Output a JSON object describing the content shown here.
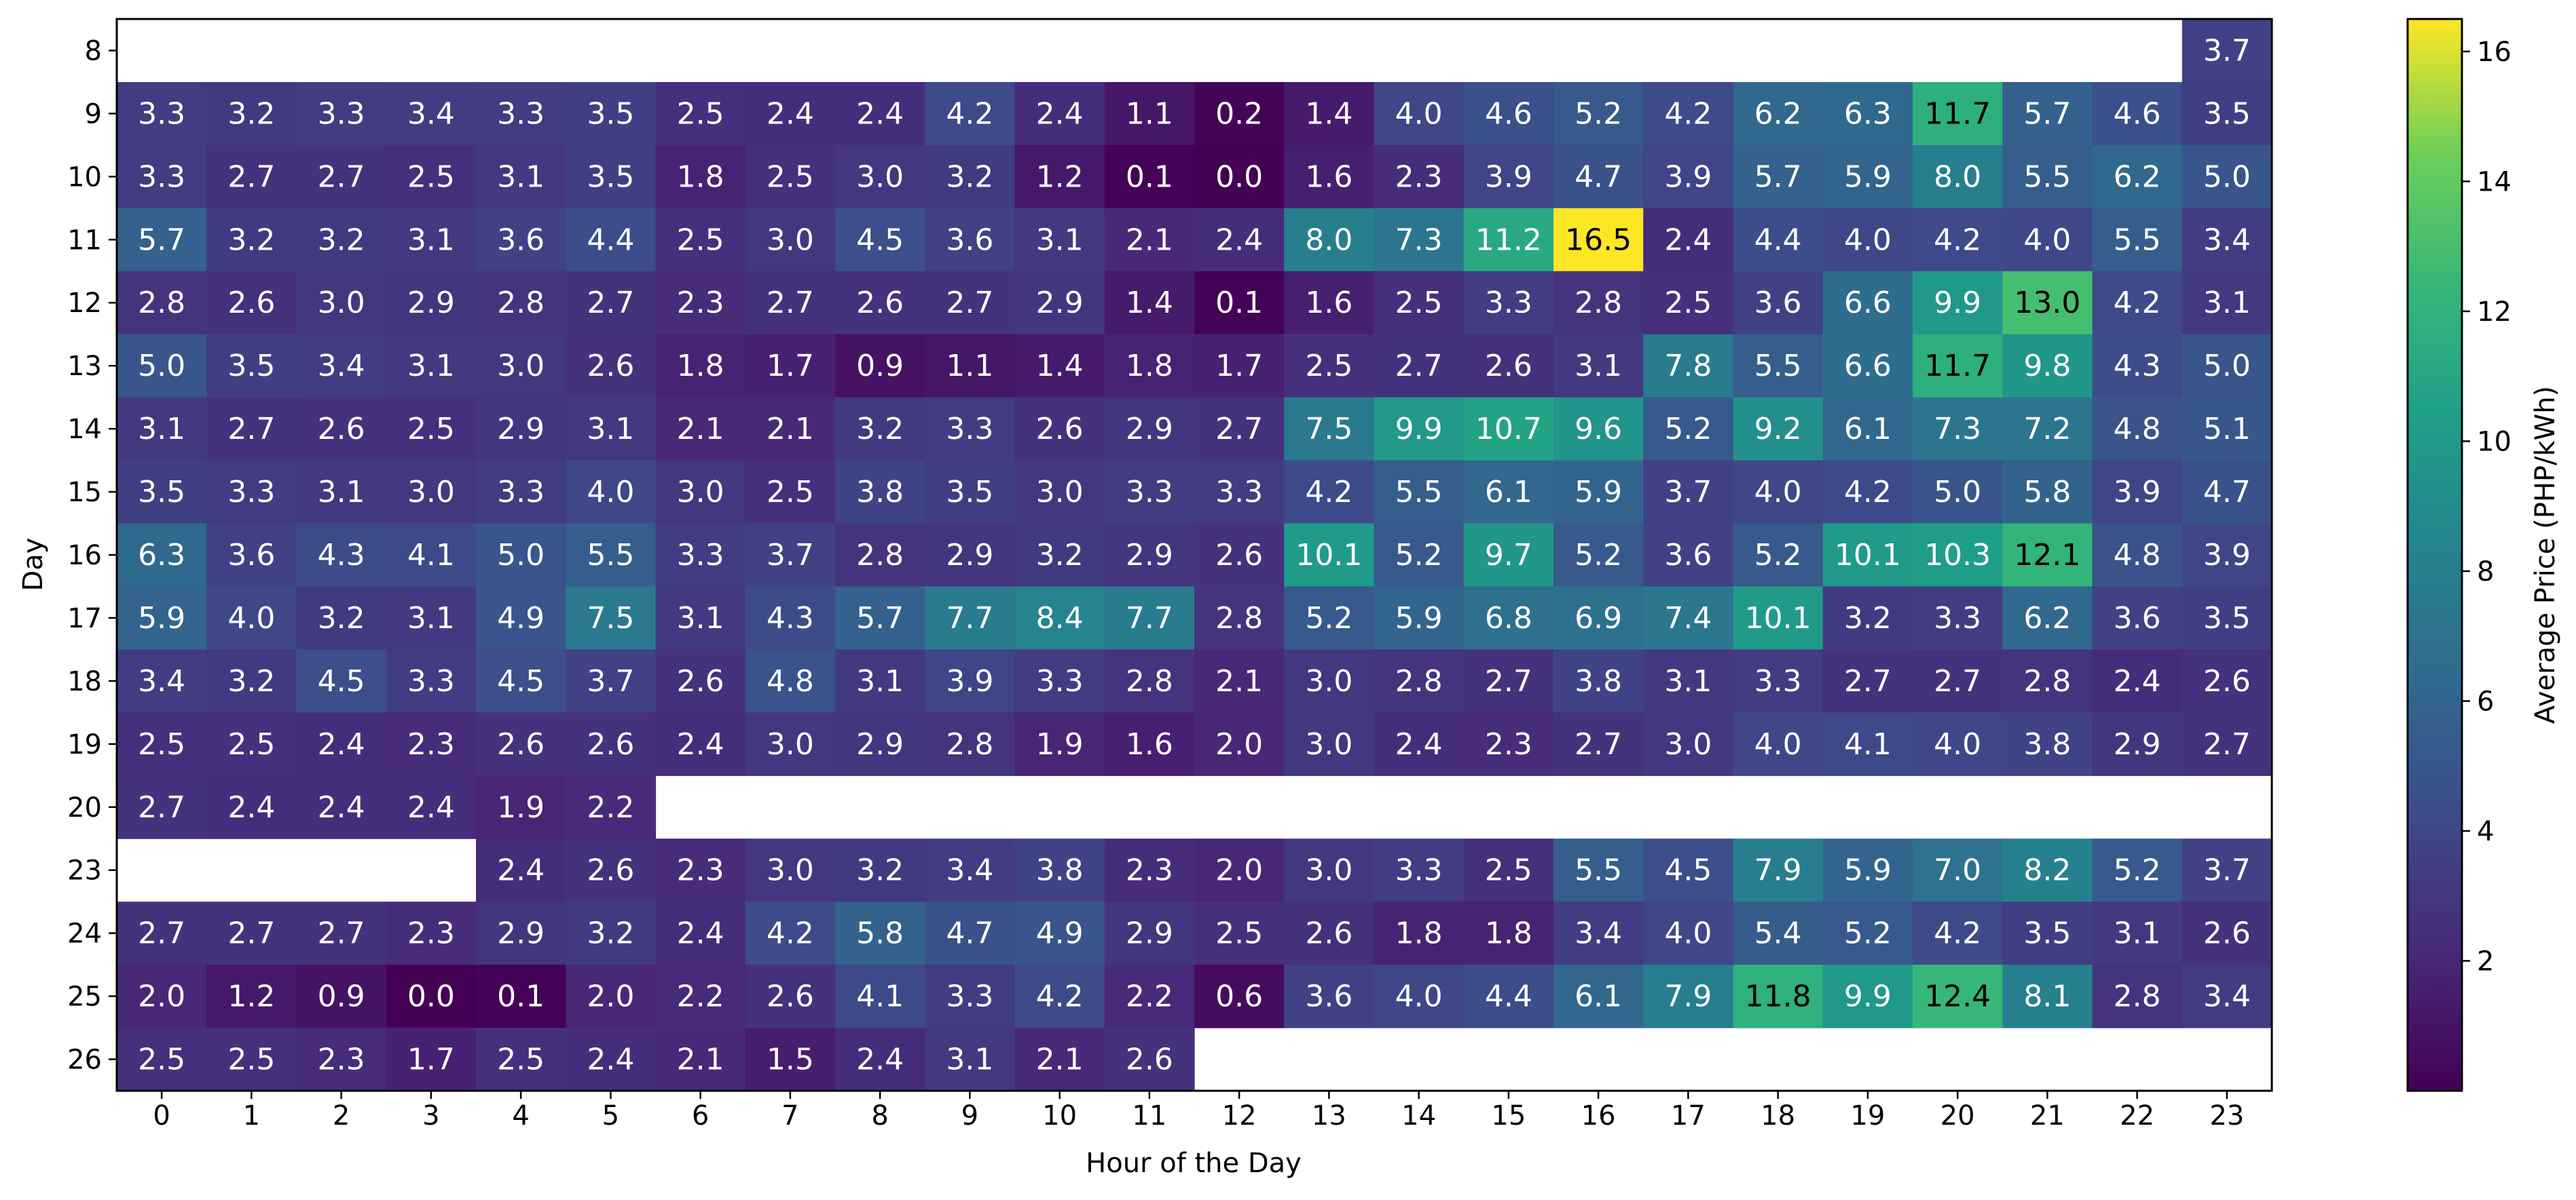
{
  "chart_data": {
    "type": "heatmap",
    "title": "",
    "xlabel": "Hour of the Day",
    "ylabel": "Day",
    "colorbar_label": "Average Price (PHP/kWh)",
    "colormap": "viridis",
    "vmin": 0.0,
    "vmax": 16.5,
    "colorbar_ticks": [
      2,
      4,
      6,
      8,
      10,
      12,
      14,
      16
    ],
    "x": [
      "0",
      "1",
      "2",
      "3",
      "4",
      "5",
      "6",
      "7",
      "8",
      "9",
      "10",
      "11",
      "12",
      "13",
      "14",
      "15",
      "16",
      "17",
      "18",
      "19",
      "20",
      "21",
      "22",
      "23"
    ],
    "y": [
      "8",
      "9",
      "10",
      "11",
      "12",
      "13",
      "14",
      "15",
      "16",
      "17",
      "18",
      "19",
      "20",
      "23",
      "24",
      "25",
      "26"
    ],
    "values": [
      [
        null,
        null,
        null,
        null,
        null,
        null,
        null,
        null,
        null,
        null,
        null,
        null,
        null,
        null,
        null,
        null,
        null,
        null,
        null,
        null,
        null,
        null,
        null,
        3.7
      ],
      [
        3.3,
        3.2,
        3.3,
        3.4,
        3.3,
        3.5,
        2.5,
        2.4,
        2.4,
        4.2,
        2.4,
        1.1,
        0.2,
        1.4,
        4.0,
        4.6,
        5.2,
        4.2,
        6.2,
        6.3,
        11.7,
        5.7,
        4.6,
        3.5
      ],
      [
        3.3,
        2.7,
        2.7,
        2.5,
        3.1,
        3.5,
        1.8,
        2.5,
        3.0,
        3.2,
        1.2,
        0.1,
        0.0,
        1.6,
        2.3,
        3.9,
        4.7,
        3.9,
        5.7,
        5.9,
        8.0,
        5.5,
        6.2,
        5.0
      ],
      [
        5.7,
        3.2,
        3.2,
        3.1,
        3.6,
        4.4,
        2.5,
        3.0,
        4.5,
        3.6,
        3.1,
        2.1,
        2.4,
        8.0,
        7.3,
        11.2,
        16.5,
        2.4,
        4.4,
        4.0,
        4.2,
        4.0,
        5.5,
        3.4
      ],
      [
        2.8,
        2.6,
        3.0,
        2.9,
        2.8,
        2.7,
        2.3,
        2.7,
        2.6,
        2.7,
        2.9,
        1.4,
        0.1,
        1.6,
        2.5,
        3.3,
        2.8,
        2.5,
        3.6,
        6.6,
        9.9,
        13.0,
        4.2,
        3.1
      ],
      [
        5.0,
        3.5,
        3.4,
        3.1,
        3.0,
        2.6,
        1.8,
        1.7,
        0.9,
        1.1,
        1.4,
        1.8,
        1.7,
        2.5,
        2.7,
        2.6,
        3.1,
        7.8,
        5.5,
        6.6,
        11.7,
        9.8,
        4.3,
        5.0
      ],
      [
        3.1,
        2.7,
        2.6,
        2.5,
        2.9,
        3.1,
        2.1,
        2.1,
        3.2,
        3.3,
        2.6,
        2.9,
        2.7,
        7.5,
        9.9,
        10.7,
        9.6,
        5.2,
        9.2,
        6.1,
        7.3,
        7.2,
        4.8,
        5.1
      ],
      [
        3.5,
        3.3,
        3.1,
        3.0,
        3.3,
        4.0,
        3.0,
        2.5,
        3.8,
        3.5,
        3.0,
        3.3,
        3.3,
        4.2,
        5.5,
        6.1,
        5.9,
        3.7,
        4.0,
        4.2,
        5.0,
        5.8,
        3.9,
        4.7
      ],
      [
        6.3,
        3.6,
        4.3,
        4.1,
        5.0,
        5.5,
        3.3,
        3.7,
        2.8,
        2.9,
        3.2,
        2.9,
        2.6,
        10.1,
        5.2,
        9.7,
        5.2,
        3.6,
        5.2,
        10.1,
        10.3,
        12.1,
        4.8,
        3.9
      ],
      [
        5.9,
        4.0,
        3.2,
        3.1,
        4.9,
        7.5,
        3.1,
        4.3,
        5.7,
        7.7,
        8.4,
        7.7,
        2.8,
        5.2,
        5.9,
        6.8,
        6.9,
        7.4,
        10.1,
        3.2,
        3.3,
        6.2,
        3.6,
        3.5
      ],
      [
        3.4,
        3.2,
        4.5,
        3.3,
        4.5,
        3.7,
        2.6,
        4.8,
        3.1,
        3.9,
        3.3,
        2.8,
        2.1,
        3.0,
        2.8,
        2.7,
        3.8,
        3.1,
        3.3,
        2.7,
        2.7,
        2.8,
        2.4,
        2.6
      ],
      [
        2.5,
        2.5,
        2.4,
        2.3,
        2.6,
        2.6,
        2.4,
        3.0,
        2.9,
        2.8,
        1.9,
        1.6,
        2.0,
        3.0,
        2.4,
        2.3,
        2.7,
        3.0,
        4.0,
        4.1,
        4.0,
        3.8,
        2.9,
        2.7
      ],
      [
        2.7,
        2.4,
        2.4,
        2.4,
        1.9,
        2.2,
        null,
        null,
        null,
        null,
        null,
        null,
        null,
        null,
        null,
        null,
        null,
        null,
        null,
        null,
        null,
        null,
        null,
        null
      ],
      [
        null,
        null,
        null,
        null,
        2.4,
        2.6,
        2.3,
        3.0,
        3.2,
        3.4,
        3.8,
        2.3,
        2.0,
        3.0,
        3.3,
        2.5,
        5.5,
        4.5,
        7.9,
        5.9,
        7.0,
        8.2,
        5.2,
        3.7
      ],
      [
        2.7,
        2.7,
        2.7,
        2.3,
        2.9,
        3.2,
        2.4,
        4.2,
        5.8,
        4.7,
        4.9,
        2.9,
        2.5,
        2.6,
        1.8,
        1.8,
        3.4,
        4.0,
        5.4,
        5.2,
        4.2,
        3.5,
        3.1,
        2.6
      ],
      [
        2.0,
        1.2,
        0.9,
        0.0,
        0.1,
        2.0,
        2.2,
        2.6,
        4.1,
        3.3,
        4.2,
        2.2,
        0.6,
        3.6,
        4.0,
        4.4,
        6.1,
        7.9,
        11.8,
        9.9,
        12.4,
        8.1,
        2.8,
        3.4
      ],
      [
        2.5,
        2.5,
        2.3,
        1.7,
        2.5,
        2.4,
        2.1,
        1.5,
        2.4,
        3.1,
        2.1,
        2.6,
        null,
        null,
        null,
        null,
        null,
        null,
        null,
        null,
        null,
        null,
        null,
        null
      ]
    ]
  }
}
